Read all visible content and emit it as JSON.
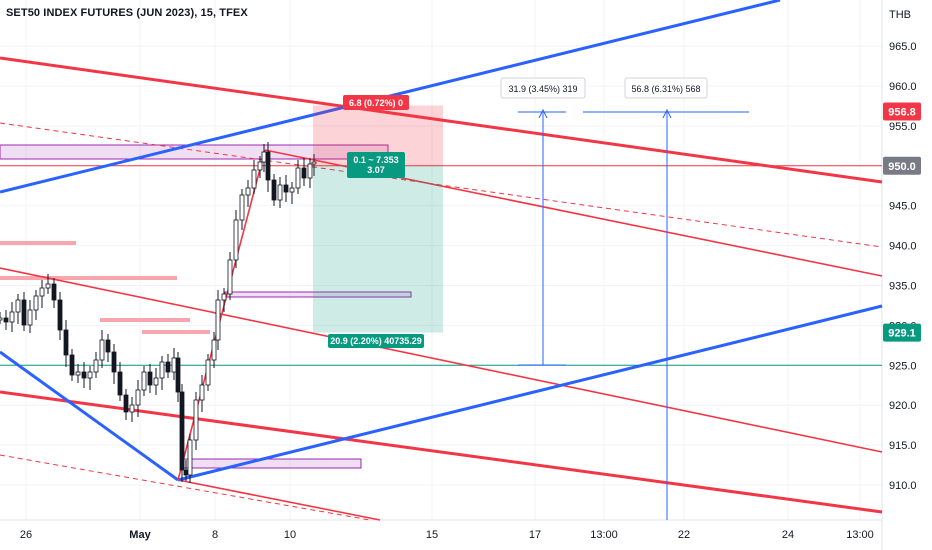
{
  "header": {
    "title": "SET50 INDEX FUTURES (JUN 2023), 15, TFEX"
  },
  "axis": {
    "currency": "THB"
  },
  "colors": {
    "red": "#f23645",
    "blue": "#2962ff",
    "green": "#089981",
    "pink": "#f7a6ad",
    "violet": "#9c27b0",
    "bg": "#ffffff"
  },
  "chart_data": {
    "type": "line",
    "title": "SET50 INDEX FUTURES (JUN 2023), 15, TFEX",
    "ylim": [
      905,
      970
    ],
    "y_ticks": [
      910.0,
      915.0,
      920.0,
      925.0,
      930.0,
      935.0,
      940.0,
      945.0,
      950.0,
      955.0,
      960.0,
      965.0
    ],
    "x_ticks": [
      "26",
      "May",
      "8",
      "10",
      "15",
      "17",
      "13:00",
      "22",
      "24",
      "13:00"
    ],
    "price_badges": [
      {
        "value": "956.8",
        "color": "#f23645"
      },
      {
        "value": "950.0",
        "color": "#787b86"
      },
      {
        "value": "929.1",
        "color": "#089981"
      }
    ],
    "price_path": [
      {
        "x": "Apr 26",
        "y": 931
      },
      {
        "x": "Apr 27",
        "y": 935
      },
      {
        "x": "Apr 28",
        "y": 924
      },
      {
        "x": "May 1",
        "y": 928
      },
      {
        "x": "May 2",
        "y": 918
      },
      {
        "x": "May 3",
        "y": 925
      },
      {
        "x": "May 4",
        "y": 923
      },
      {
        "x": "May 5",
        "y": 910.5
      },
      {
        "x": "May 6",
        "y": 925
      },
      {
        "x": "May 8",
        "y": 934
      },
      {
        "x": "May 8",
        "y": 948
      },
      {
        "x": "May 9",
        "y": 952
      },
      {
        "x": "May 9",
        "y": 944
      },
      {
        "x": "May 10",
        "y": 949
      },
      {
        "x": "May 11",
        "y": 950
      }
    ],
    "position": {
      "target_label": "6.8 (0.72%) 0",
      "entry_label": "0.1 ~ 7.353",
      "entry_sub": "3.07",
      "stop_label": "20.9 (2.20%) 40735.29",
      "entry": 950.0,
      "target": 956.8,
      "stop": 929.1
    },
    "measurements": [
      {
        "label": "31.9 (3.45%) 319"
      },
      {
        "label": "56.8 (6.31%) 568"
      }
    ],
    "horizontal_level": 925.0,
    "grid": true
  }
}
